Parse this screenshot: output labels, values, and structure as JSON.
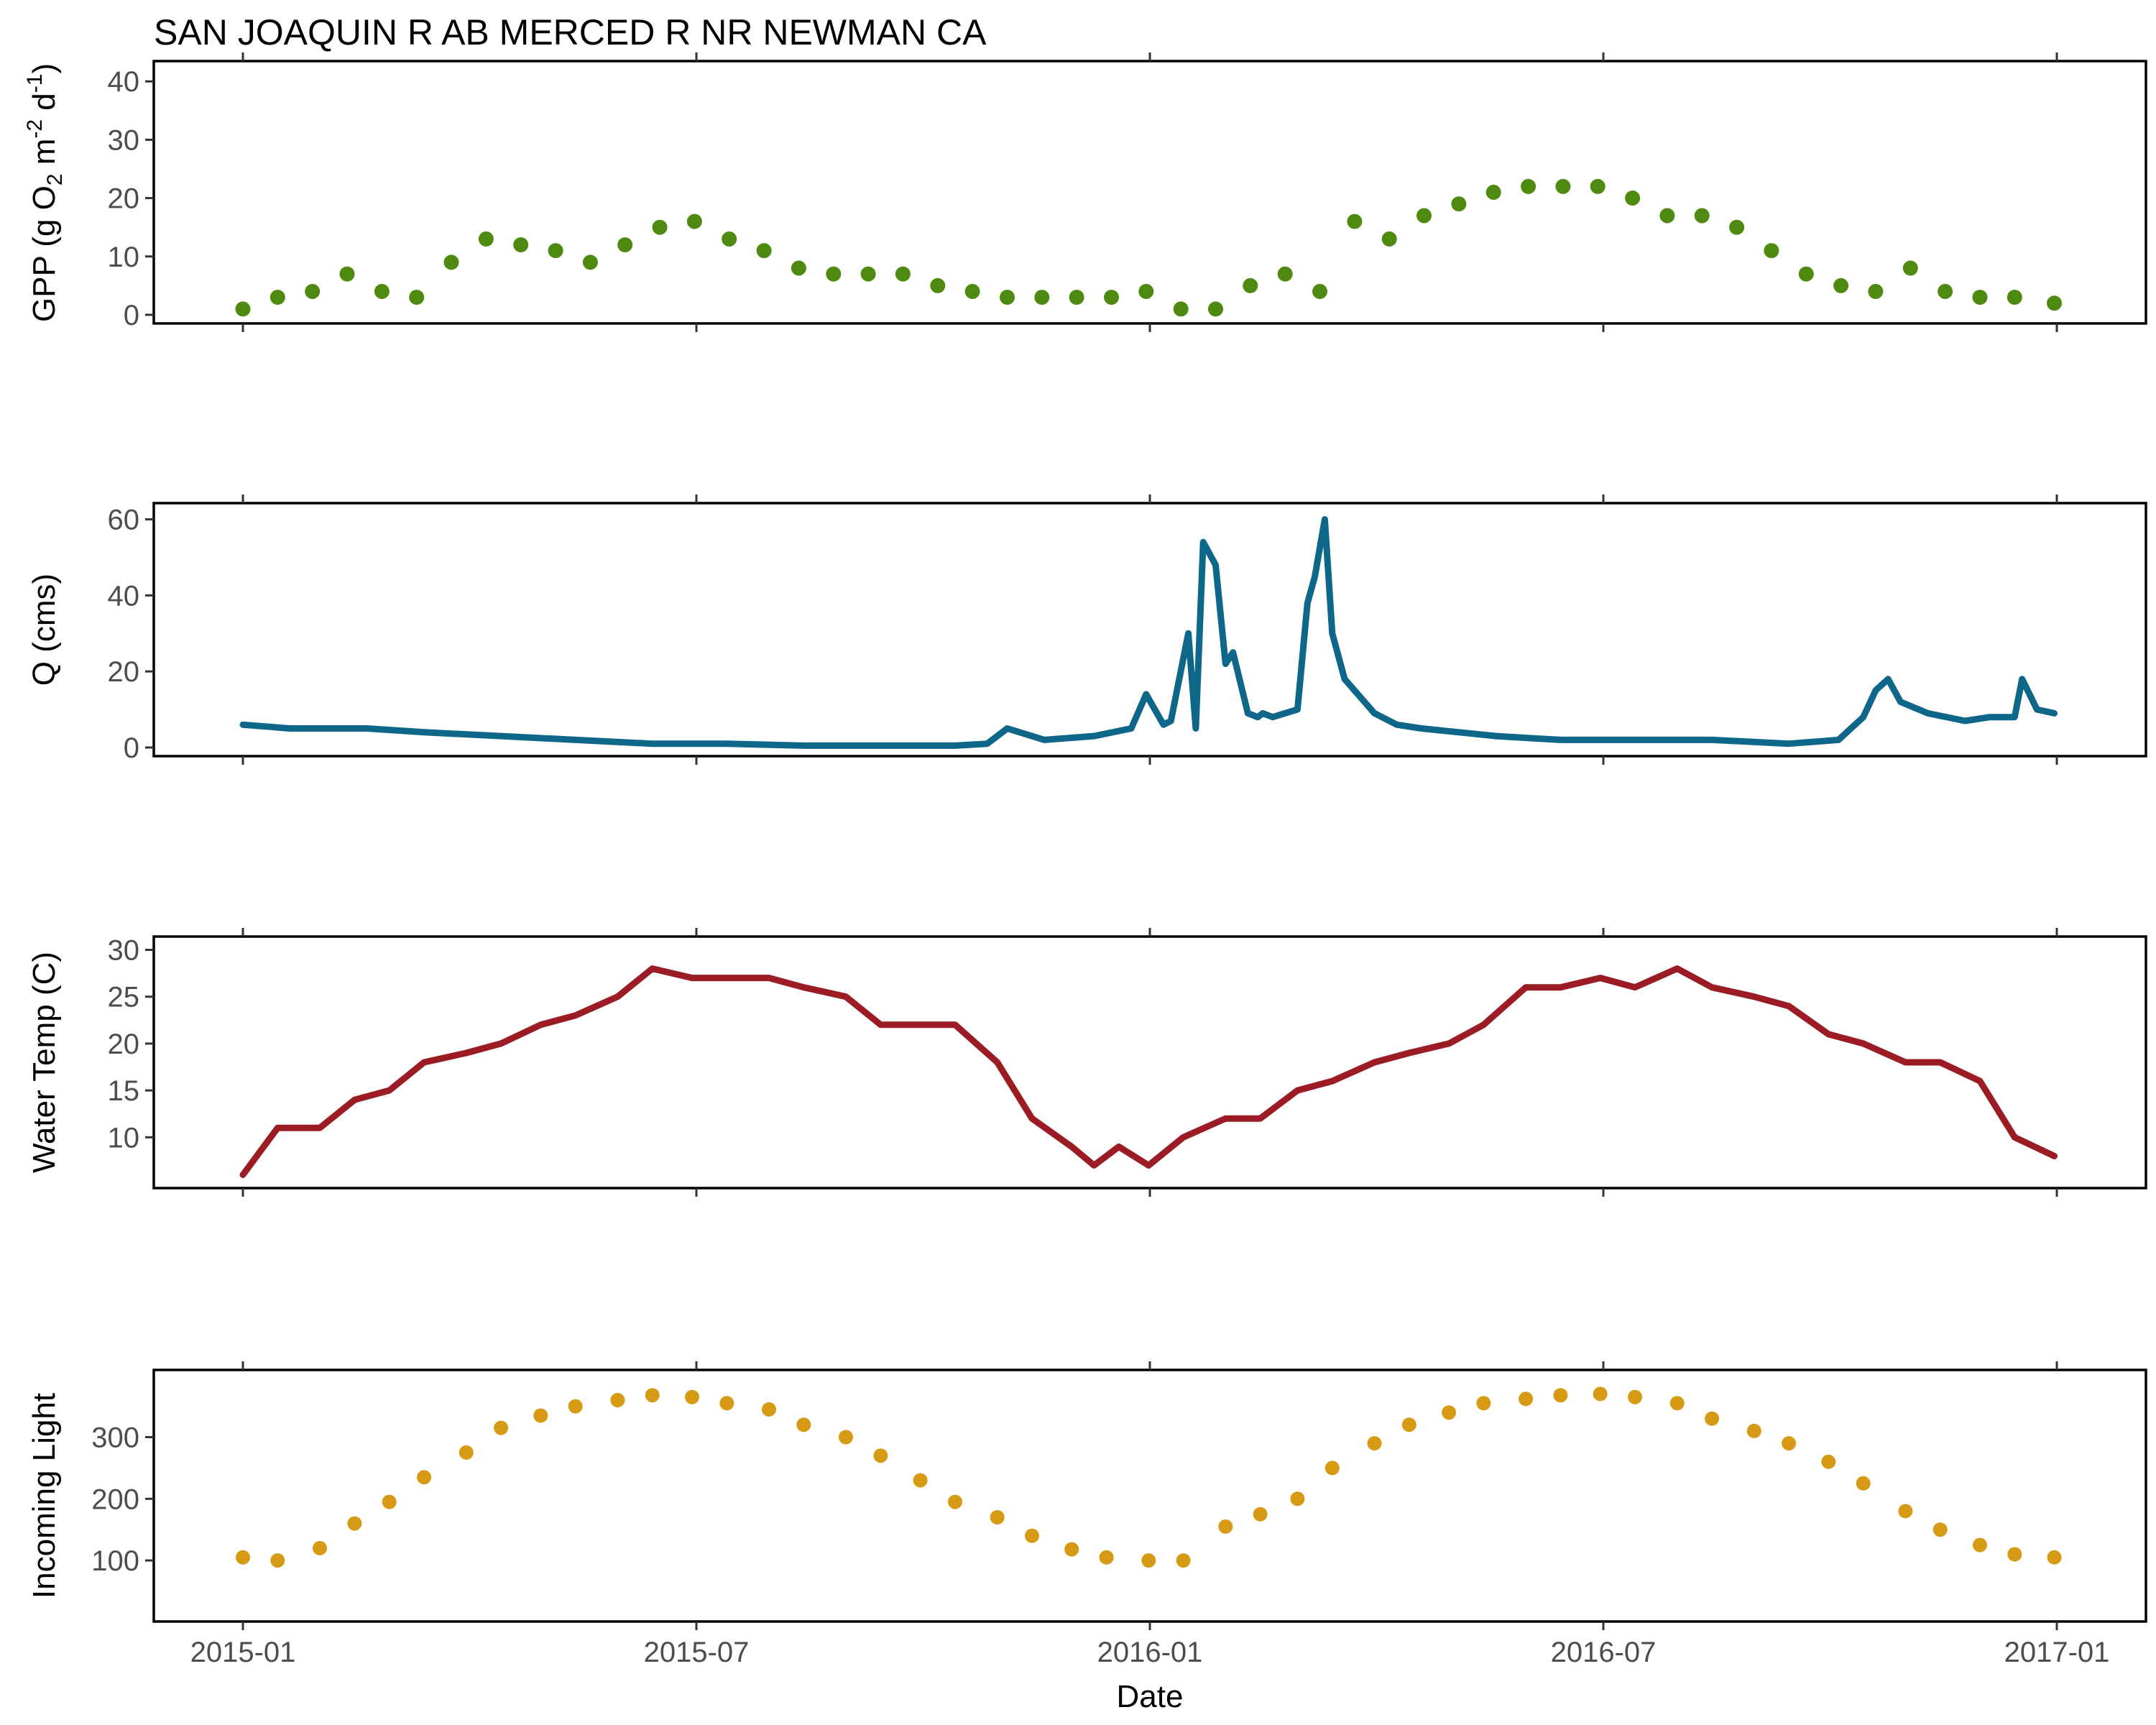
{
  "page": {
    "title": "SAN JOAQUIN R AB MERCED R NR NEWMAN CA"
  },
  "chart_data": [
    {
      "type": "scatter",
      "title": "SAN JOAQUIN R AB MERCED R NR NEWMAN CA",
      "xlabel": "",
      "ylabel": "GPP (g  O2 m-2 d-1)",
      "ylim": [
        0,
        42
      ],
      "ytick_values": [
        0,
        10,
        20,
        30,
        40
      ],
      "ytick_labels": [
        "0",
        "10",
        "20",
        "30",
        "40"
      ],
      "xlim": [
        "2015-01-01",
        "2017-01-01"
      ],
      "x_tick_labels": [
        "2015-01",
        "2015-07",
        "2016-01",
        "2016-07",
        "2017-01"
      ],
      "grid": false,
      "color": "#4f8a10",
      "series": [
        {
          "x": [
            "2015-01-01",
            "2015-01-15",
            "2015-01-29",
            "2015-02-12",
            "2015-02-26",
            "2015-03-12",
            "2015-03-26",
            "2015-04-09",
            "2015-04-23",
            "2015-05-07",
            "2015-05-21",
            "2015-06-04",
            "2015-06-18",
            "2015-07-02",
            "2015-07-16",
            "2015-07-30",
            "2015-08-13",
            "2015-08-27",
            "2015-09-10",
            "2015-09-24",
            "2015-10-08",
            "2015-10-22",
            "2015-11-05",
            "2015-11-19",
            "2015-12-03",
            "2015-12-17",
            "2015-12-31",
            "2016-01-14",
            "2016-01-28",
            "2016-02-11",
            "2016-02-25",
            "2016-03-10",
            "2016-03-24",
            "2016-04-07",
            "2016-04-21",
            "2016-05-05",
            "2016-05-19",
            "2016-06-02",
            "2016-06-16",
            "2016-06-30",
            "2016-07-14",
            "2016-07-28",
            "2016-08-11",
            "2016-08-25",
            "2016-09-08",
            "2016-09-22",
            "2016-10-06",
            "2016-10-20",
            "2016-11-03",
            "2016-11-17",
            "2016-12-01",
            "2016-12-15",
            "2016-12-31"
          ],
          "y": [
            1,
            3,
            4,
            7,
            4,
            3,
            9,
            13,
            12,
            11,
            9,
            12,
            15,
            16,
            13,
            11,
            8,
            7,
            7,
            7,
            5,
            4,
            3,
            3,
            3,
            3,
            4,
            1,
            1,
            5,
            7,
            4,
            16,
            13,
            17,
            19,
            21,
            22,
            22,
            22,
            20,
            17,
            17,
            15,
            11,
            7,
            5,
            4,
            8,
            4,
            3,
            3,
            2
          ]
        }
      ]
    },
    {
      "type": "line",
      "xlabel": "",
      "ylabel": "Q (cms)",
      "ylim": [
        0,
        62
      ],
      "ytick_values": [
        0,
        20,
        40,
        60
      ],
      "ytick_labels": [
        "0",
        "20",
        "40",
        "60"
      ],
      "xlim": [
        "2015-01-01",
        "2017-01-01"
      ],
      "x_tick_labels": [
        "2015-01",
        "2015-07",
        "2016-01",
        "2016-07",
        "2017-01"
      ],
      "grid": false,
      "color": "#0e6689",
      "series": [
        {
          "x": [
            "2015-01-01",
            "2015-01-20",
            "2015-02-20",
            "2015-03-15",
            "2015-04-15",
            "2015-05-15",
            "2015-06-15",
            "2015-07-15",
            "2015-08-15",
            "2015-09-15",
            "2015-10-15",
            "2015-10-28",
            "2015-11-05",
            "2015-11-20",
            "2015-12-10",
            "2015-12-25",
            "2015-12-31",
            "2016-01-07",
            "2016-01-10",
            "2016-01-17",
            "2016-01-20",
            "2016-01-23",
            "2016-01-28",
            "2016-02-01",
            "2016-02-04",
            "2016-02-10",
            "2016-02-14",
            "2016-02-16",
            "2016-02-20",
            "2016-03-01",
            "2016-03-05",
            "2016-03-08",
            "2016-03-12",
            "2016-03-15",
            "2016-03-20",
            "2016-04-01",
            "2016-04-10",
            "2016-04-20",
            "2016-05-05",
            "2016-05-20",
            "2016-06-15",
            "2016-07-15",
            "2016-08-15",
            "2016-09-15",
            "2016-10-05",
            "2016-10-15",
            "2016-10-20",
            "2016-10-25",
            "2016-10-30",
            "2016-11-10",
            "2016-11-25",
            "2016-12-05",
            "2016-12-15",
            "2016-12-18",
            "2016-12-24",
            "2016-12-31"
          ],
          "y": [
            6,
            5,
            5,
            4,
            3,
            2,
            1,
            1,
            0.5,
            0.5,
            0.5,
            1,
            5,
            2,
            3,
            5,
            14,
            6,
            7,
            30,
            5,
            54,
            48,
            22,
            25,
            9,
            8,
            9,
            8,
            10,
            38,
            45,
            60,
            30,
            18,
            9,
            6,
            5,
            4,
            3,
            2,
            2,
            2,
            1,
            2,
            8,
            15,
            18,
            12,
            9,
            7,
            8,
            8,
            18,
            10,
            9
          ]
        }
      ]
    },
    {
      "type": "line",
      "xlabel": "",
      "ylabel": "Water Temp (C)",
      "ylim": [
        5.5,
        30.5
      ],
      "ytick_values": [
        10,
        15,
        20,
        25,
        30
      ],
      "ytick_labels": [
        "10",
        "15",
        "20",
        "25",
        "30"
      ],
      "xlim": [
        "2015-01-01",
        "2017-01-01"
      ],
      "x_tick_labels": [
        "2015-01",
        "2015-07",
        "2016-01",
        "2016-07",
        "2017-01"
      ],
      "grid": false,
      "color": "#9b1c24",
      "series": [
        {
          "x": [
            "2015-01-01",
            "2015-01-15",
            "2015-02-01",
            "2015-02-15",
            "2015-03-01",
            "2015-03-15",
            "2015-04-01",
            "2015-04-15",
            "2015-05-01",
            "2015-05-15",
            "2015-06-01",
            "2015-06-15",
            "2015-07-01",
            "2015-07-15",
            "2015-08-01",
            "2015-08-15",
            "2015-09-01",
            "2015-09-15",
            "2015-10-01",
            "2015-10-15",
            "2015-11-01",
            "2015-11-15",
            "2015-12-01",
            "2015-12-10",
            "2015-12-20",
            "2016-01-01",
            "2016-01-15",
            "2016-02-01",
            "2016-02-15",
            "2016-03-01",
            "2016-03-15",
            "2016-04-01",
            "2016-04-15",
            "2016-05-01",
            "2016-05-15",
            "2016-06-01",
            "2016-06-15",
            "2016-07-01",
            "2016-07-15",
            "2016-08-01",
            "2016-08-15",
            "2016-09-01",
            "2016-09-15",
            "2016-10-01",
            "2016-10-15",
            "2016-11-01",
            "2016-11-15",
            "2016-12-01",
            "2016-12-15",
            "2016-12-31"
          ],
          "y": [
            6,
            11,
            11,
            14,
            15,
            18,
            19,
            20,
            22,
            23,
            25,
            28,
            27,
            27,
            27,
            26,
            25,
            22,
            22,
            22,
            18,
            12,
            9,
            7,
            9,
            7,
            10,
            12,
            12,
            15,
            16,
            18,
            19,
            20,
            22,
            26,
            26,
            27,
            26,
            28,
            26,
            25,
            24,
            21,
            20,
            18,
            18,
            16,
            10,
            8
          ]
        }
      ]
    },
    {
      "type": "scatter",
      "xlabel": "Date",
      "ylabel": "Incoming Light",
      "ylim": [
        15,
        395
      ],
      "ytick_values": [
        100,
        200,
        300
      ],
      "ytick_labels": [
        "100",
        "200",
        "300"
      ],
      "xlim": [
        "2015-01-01",
        "2017-01-01"
      ],
      "x_tick_labels": [
        "2015-01",
        "2015-07",
        "2016-01",
        "2016-07",
        "2017-01"
      ],
      "grid": false,
      "color": "#d69a14",
      "series": [
        {
          "x": [
            "2015-01-01",
            "2015-01-15",
            "2015-02-01",
            "2015-02-15",
            "2015-03-01",
            "2015-03-15",
            "2015-04-01",
            "2015-04-15",
            "2015-05-01",
            "2015-05-15",
            "2015-06-01",
            "2015-06-15",
            "2015-07-01",
            "2015-07-15",
            "2015-08-01",
            "2015-08-15",
            "2015-09-01",
            "2015-09-15",
            "2015-10-01",
            "2015-10-15",
            "2015-11-01",
            "2015-11-15",
            "2015-12-01",
            "2015-12-15",
            "2016-01-01",
            "2016-01-15",
            "2016-02-01",
            "2016-02-15",
            "2016-03-01",
            "2016-03-15",
            "2016-04-01",
            "2016-04-15",
            "2016-05-01",
            "2016-05-15",
            "2016-06-01",
            "2016-06-15",
            "2016-07-01",
            "2016-07-15",
            "2016-08-01",
            "2016-08-15",
            "2016-09-01",
            "2016-09-15",
            "2016-10-01",
            "2016-10-15",
            "2016-11-01",
            "2016-11-15",
            "2016-12-01",
            "2016-12-15",
            "2016-12-31"
          ],
          "y": [
            105,
            100,
            120,
            160,
            195,
            235,
            275,
            315,
            335,
            350,
            360,
            368,
            365,
            355,
            345,
            320,
            300,
            270,
            230,
            195,
            170,
            140,
            118,
            105,
            100,
            100,
            155,
            175,
            200,
            250,
            290,
            320,
            340,
            355,
            362,
            368,
            370,
            365,
            355,
            330,
            310,
            290,
            260,
            225,
            180,
            150,
            125,
            110,
            105
          ]
        }
      ]
    }
  ]
}
